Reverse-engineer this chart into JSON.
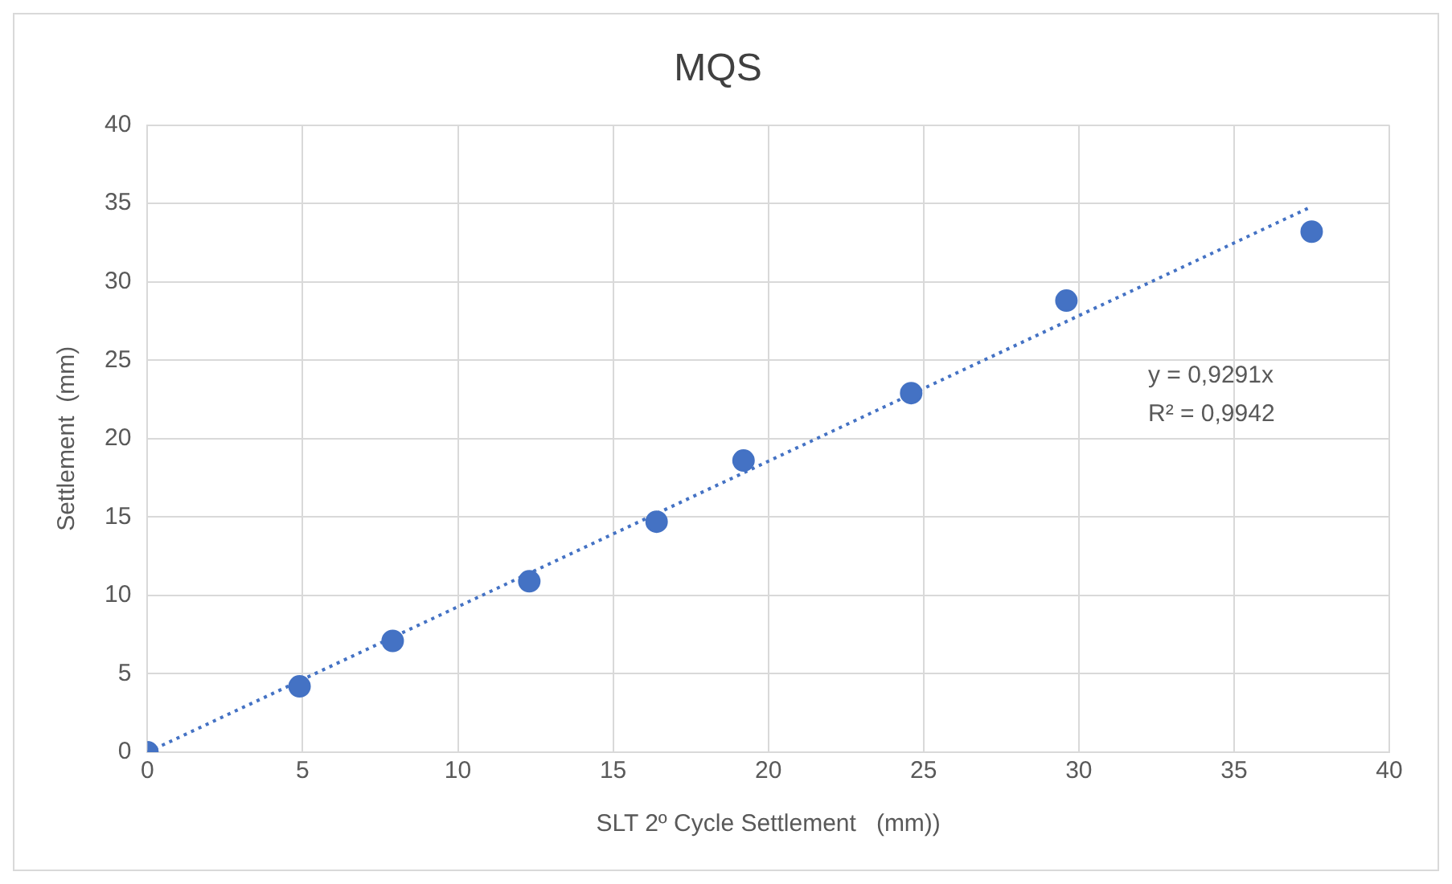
{
  "chart_data": {
    "type": "scatter",
    "title": "MQS",
    "xlabel": "SLT 2º Cycle Settlement   (mm))",
    "ylabel": "Settlement  (mm)",
    "xlim": [
      0,
      40
    ],
    "xticks": [
      0,
      5,
      10,
      15,
      20,
      25,
      30,
      35,
      40
    ],
    "ylim": [
      0,
      40
    ],
    "yticks": [
      0,
      5,
      10,
      15,
      20,
      25,
      30,
      35,
      40
    ],
    "grid": true,
    "legend": false,
    "marker": "circle",
    "series": [
      {
        "color": "#4472c4",
        "x": [
          0,
          4.9,
          7.9,
          12.3,
          16.4,
          19.2,
          24.6,
          29.6,
          37.5
        ],
        "values": [
          0,
          4.2,
          7.1,
          10.9,
          14.7,
          18.6,
          22.9,
          28.8,
          33.2
        ]
      },
      {
        "type": "line",
        "color": "#4472c4",
        "line_style": "dotted",
        "marker": "none",
        "x": [
          0,
          37.5
        ],
        "values": [
          0,
          34.8
        ]
      }
    ],
    "annotations": [
      "y = 0,9291x",
      "R² = 0,9942"
    ]
  }
}
